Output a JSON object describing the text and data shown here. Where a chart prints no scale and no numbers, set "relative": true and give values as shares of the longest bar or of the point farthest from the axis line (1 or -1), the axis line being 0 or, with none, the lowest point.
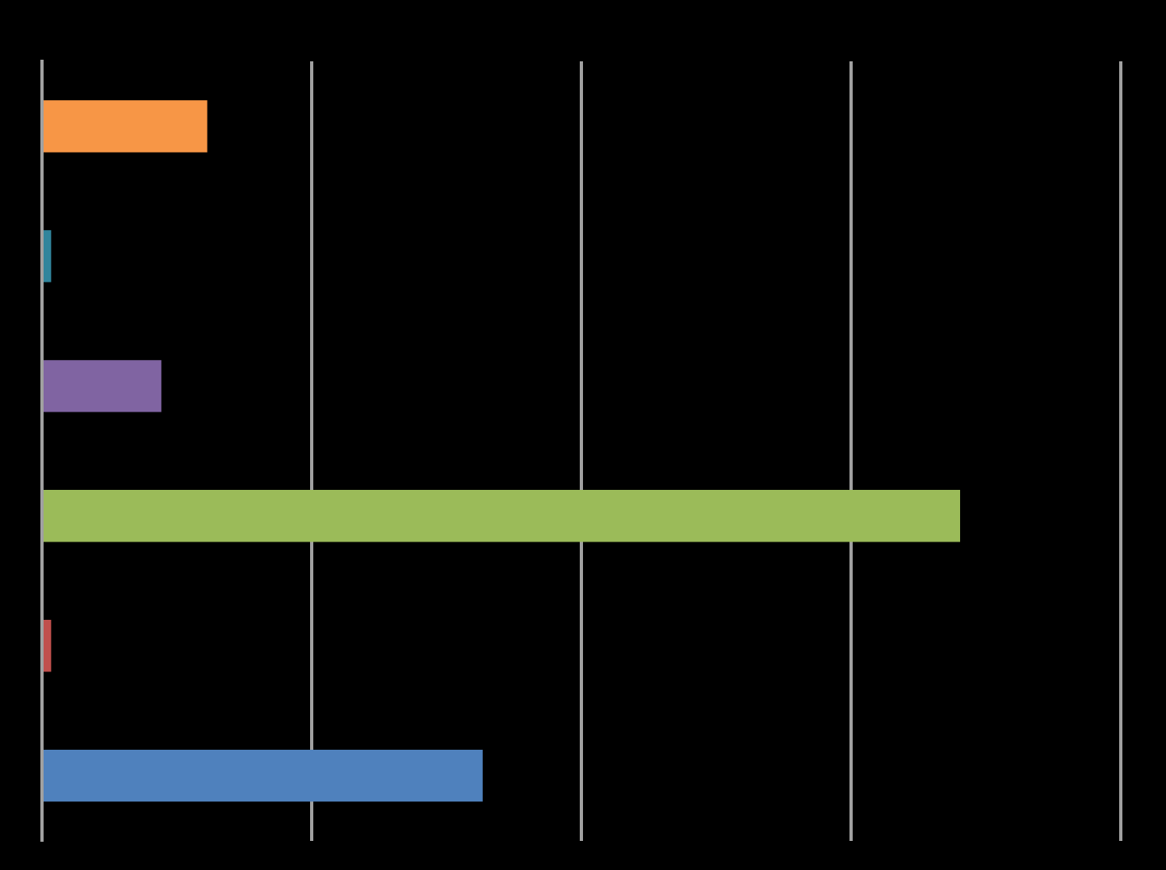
{
  "chart_data": {
    "type": "bar",
    "orientation": "horizontal",
    "relative": true,
    "grid": "x",
    "legend": false,
    "categories": [
      null,
      null,
      null,
      null,
      null,
      null
    ],
    "values": [
      0.18,
      0.01,
      0.13,
      1,
      0.01,
      0.48
    ],
    "colors": [
      "#f79646",
      "#31859c",
      "#8064a2",
      "#9bbb59",
      "#c0504d",
      "#4f81bd"
    ]
  }
}
